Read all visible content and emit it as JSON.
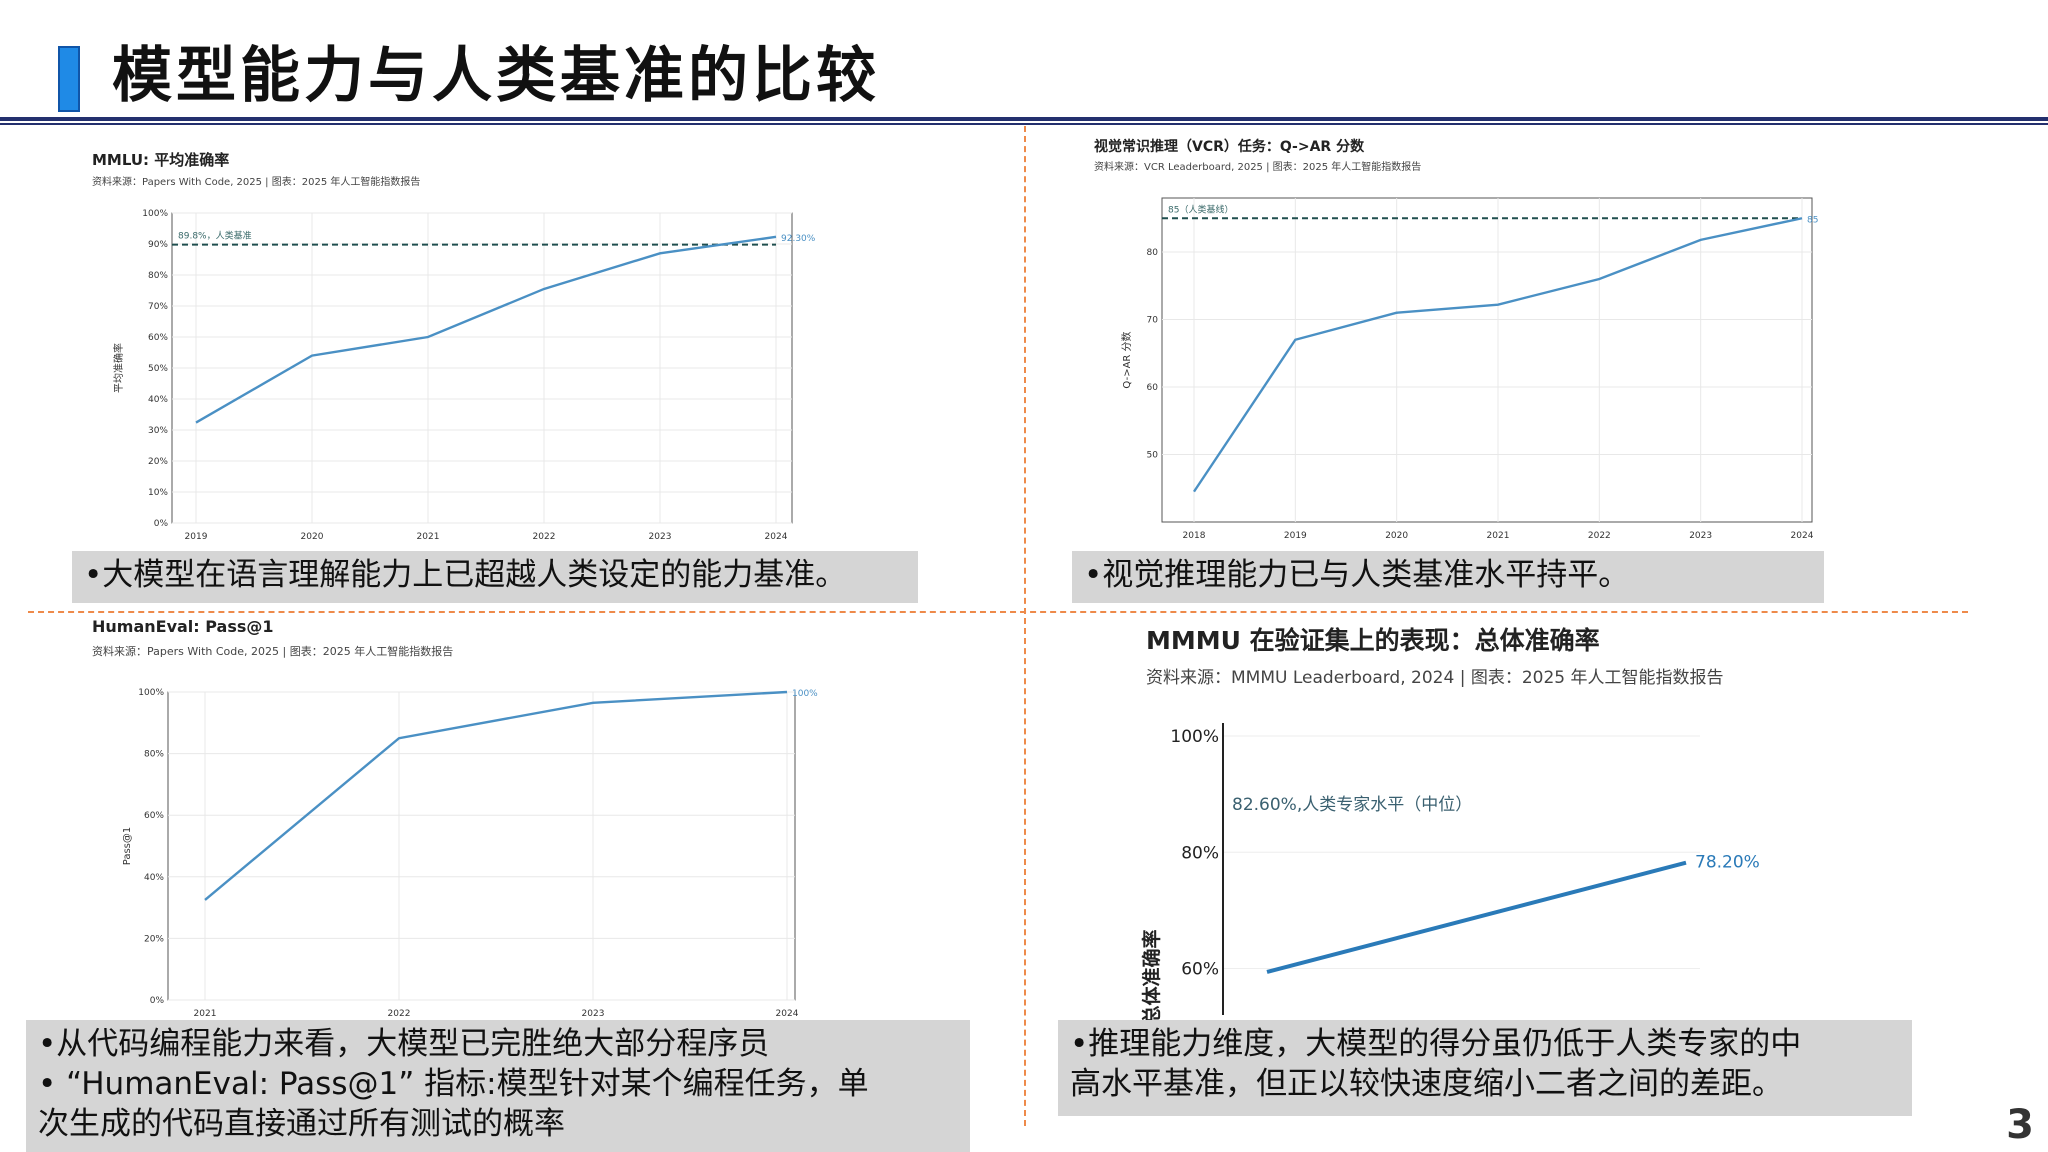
{
  "slide": {
    "title": "模型能力与人类基准的比较",
    "page_number": "3"
  },
  "colors": {
    "accent": "#1f8ae6",
    "line": "#4a90c4",
    "baseline": "#1f4e4e",
    "divider": "#ee8a4a"
  },
  "captions": {
    "mmlu": "•大模型在语言理解能力上已超越人类设定的能力基准。",
    "vcr": "•视觉推理能力已与人类基准水平持平。",
    "humaneval": [
      "•从代码编程能力来看，大模型已完胜绝大部分程序员",
      "• “HumanEval: Pass@1” 指标:模型针对某个编程任务，单",
      "次生成的代码直接通过所有测试的概率"
    ],
    "mmmu": [
      "•推理能力维度，大模型的得分虽仍低于人类专家的中",
      "高水平基准，但正以较快速度缩小二者之间的差距。"
    ]
  },
  "chart_data": [
    {
      "id": "mmlu",
      "type": "line",
      "title": "MMLU: 平均准确率",
      "subtitle": "资料来源：Papers With Code, 2025 | 图表：2025 年人工智能指数报告",
      "ylabel": "平均准确率",
      "x": [
        "2019",
        "2020",
        "2021",
        "2022",
        "2023",
        "2024"
      ],
      "values": [
        32.4,
        54,
        60,
        75.5,
        87,
        92.3
      ],
      "ylim": [
        0,
        100
      ],
      "yticks": [
        "0%",
        "10%",
        "20%",
        "30%",
        "40%",
        "50%",
        "60%",
        "70%",
        "80%",
        "90%",
        "100%"
      ],
      "baseline": {
        "value": 89.8,
        "label": "89.8%，人类基准"
      },
      "end_label": "92.30%"
    },
    {
      "id": "vcr",
      "type": "line",
      "title": "视觉常识推理（VCR）任务：Q->AR 分数",
      "subtitle": "资料来源：VCR Leaderboard, 2025 | 图表：2025 年人工智能指数报告",
      "ylabel": "Q->AR 分数",
      "x": [
        "2018",
        "2019",
        "2020",
        "2021",
        "2022",
        "2023",
        "2024"
      ],
      "values": [
        44.5,
        67,
        71,
        72.2,
        76,
        81.8,
        85
      ],
      "ylim": [
        40,
        88
      ],
      "yticks": [
        "50",
        "60",
        "70",
        "80"
      ],
      "ytick_values": [
        50,
        60,
        70,
        80
      ],
      "baseline": {
        "value": 85,
        "label": "85（人类基线）"
      },
      "end_label": "85"
    },
    {
      "id": "humaneval",
      "type": "line",
      "title": "HumanEval: Pass@1",
      "subtitle": "资料来源：Papers With Code, 2025 | 图表：2025 年人工智能指数报告",
      "ylabel": "Pass@1",
      "x": [
        "2021",
        "2022",
        "2023",
        "2024"
      ],
      "values": [
        32.5,
        85,
        96.5,
        100
      ],
      "ylim": [
        0,
        100
      ],
      "yticks": [
        "0%",
        "20%",
        "40%",
        "60%",
        "80%",
        "100%"
      ],
      "end_label": "100%"
    },
    {
      "id": "mmmu",
      "type": "line",
      "title": "MMMU 在验证集上的表现：总体准确率",
      "subtitle": "资料来源：MMMU Leaderboard, 2024 | 图表：2025 年人工智能指数报告",
      "ylabel": "总体准确率",
      "start": 59.4,
      "end": 78.2,
      "ylim": [
        52,
        100
      ],
      "yticks": [
        "60%",
        "80%",
        "100%"
      ],
      "ytick_values": [
        60,
        80,
        100
      ],
      "annotation": "82.60%,人类专家水平（中位）",
      "end_label": "78.20%"
    }
  ]
}
